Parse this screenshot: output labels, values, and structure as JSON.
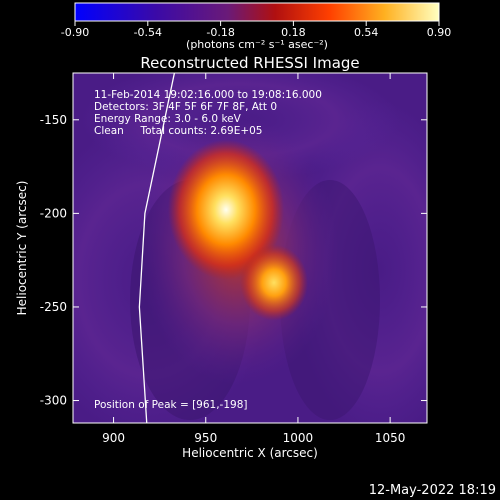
{
  "chart_data": {
    "type": "heatmap",
    "title": "Reconstructed RHESSI Image",
    "xlabel": "Heliocentric X (arcsec)",
    "ylabel": "Heliocentric Y (arcsec)",
    "xlim": [
      878,
      1070
    ],
    "ylim": [
      -312,
      -125
    ],
    "xticks": [
      900,
      950,
      1000,
      1050
    ],
    "yticks": [
      -150,
      -200,
      -250,
      -300
    ],
    "colorbar": {
      "ticks": [
        "-0.90",
        "-0.54",
        "-0.18",
        "0.18",
        "0.54",
        "0.90"
      ],
      "range": [
        -0.9,
        0.9
      ],
      "unit_label": "(photons cm⁻² s⁻¹ asec⁻²)"
    },
    "annotations": [
      "11-Feb-2014 19:02:16.000 to 19:08:16.000",
      "Detectors: 3F 4F 5F 6F 7F 8F, Att 0",
      "Energy Range: 3.0 - 6.0 keV",
      "Clean     Total counts: 2.69E+05"
    ],
    "peak_label": "Position of Peak = [961,-198]",
    "peak": [
      961,
      -198
    ],
    "sources": [
      {
        "x": 961,
        "y": -198,
        "level": 0.9
      },
      {
        "x": 987,
        "y": -237,
        "level": 0.62
      }
    ],
    "limb_line": [
      [
        933,
        -125
      ],
      [
        917,
        -200
      ],
      [
        914,
        -250
      ],
      [
        918,
        -312
      ]
    ]
  },
  "timestamp": "12-May-2022 18:19"
}
